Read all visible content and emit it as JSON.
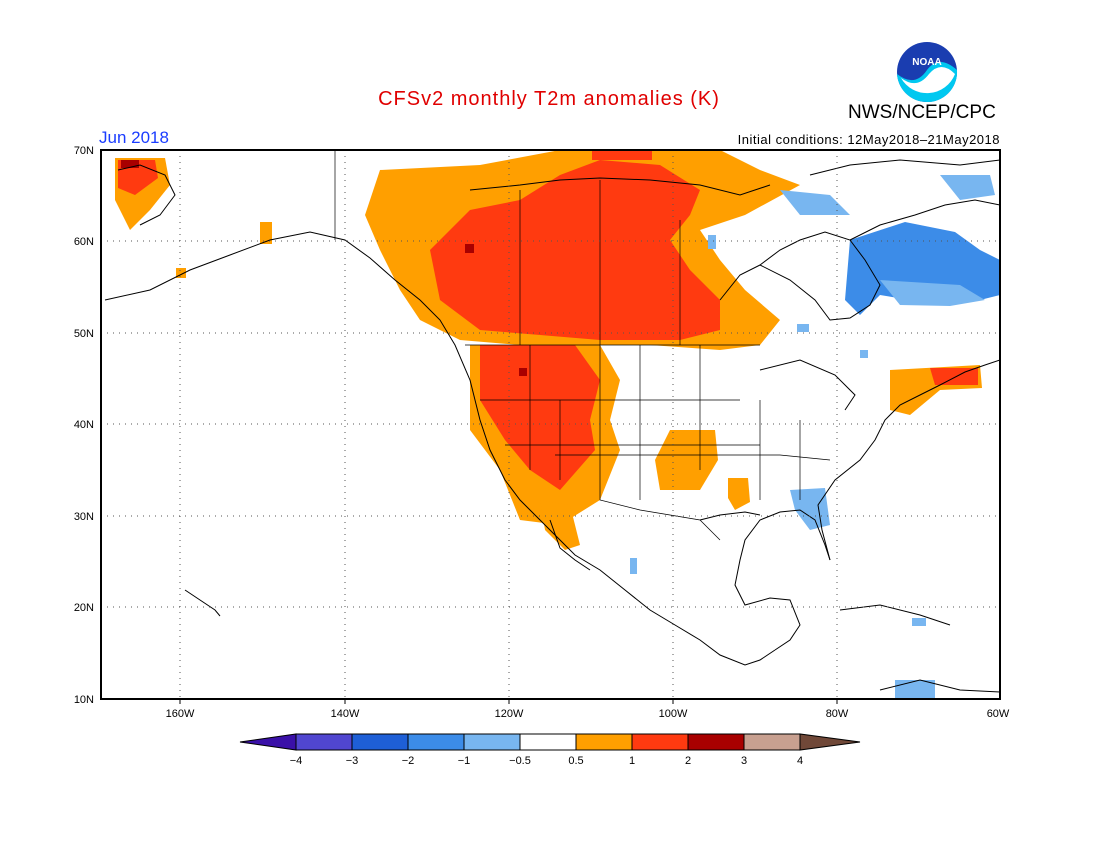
{
  "title": "CFSv2 monthly T2m anomalies (K)",
  "agency": "NWS/NCEP/CPC",
  "logo_text": "NOAA",
  "valid_month": "Jun 2018",
  "initial_conditions": "Initial conditions: 12May2018–21May2018",
  "lat_labels": [
    "70N",
    "60N",
    "50N",
    "40N",
    "30N",
    "20N",
    "10N"
  ],
  "lon_labels": [
    "160W",
    "140W",
    "120W",
    "100W",
    "80W",
    "60W"
  ],
  "colorbar": {
    "labels": [
      "−4",
      "−3",
      "−2",
      "−1",
      "−0.5",
      "0.5",
      "1",
      "2",
      "3",
      "4"
    ],
    "colors": [
      "#3a10a8",
      "#5046d0",
      "#1e5fd6",
      "#3c8ce8",
      "#78b6f0",
      "#ffffff",
      "#ff9f00",
      "#ff3a10",
      "#a80000",
      "#c8a090",
      "#704838"
    ]
  }
}
